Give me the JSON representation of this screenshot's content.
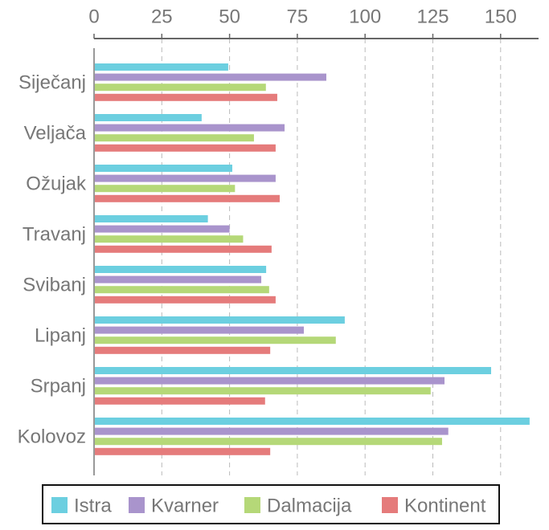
{
  "chart_data": {
    "type": "barh",
    "categories": [
      "Siječanj",
      "Veljača",
      "Ožujak",
      "Travanj",
      "Svibanj",
      "Lipanj",
      "Srpanj",
      "Kolovoz"
    ],
    "series": [
      {
        "name": "Istra",
        "color": "#6ccfe0",
        "values": [
          49.5,
          39.7,
          51,
          42,
          63.5,
          92.5,
          146.5,
          160.7
        ]
      },
      {
        "name": "Kvarner",
        "color": "#a994cc",
        "values": [
          85.7,
          70.3,
          67,
          50,
          61.7,
          77.4,
          129.3,
          130.7
        ]
      },
      {
        "name": "Dalmacija",
        "color": "#b5d878",
        "values": [
          63.4,
          59,
          52,
          55,
          64.6,
          89.2,
          124.2,
          128.4
        ]
      },
      {
        "name": "Kontinent",
        "color": "#e57b7b",
        "values": [
          67.6,
          67,
          68.5,
          65.5,
          67,
          65,
          63.1,
          65
        ]
      }
    ],
    "xlim": [
      0,
      164
    ],
    "xticks": [
      0,
      25,
      50,
      75,
      100,
      125,
      150
    ],
    "grid": true,
    "legend": "bottom"
  }
}
